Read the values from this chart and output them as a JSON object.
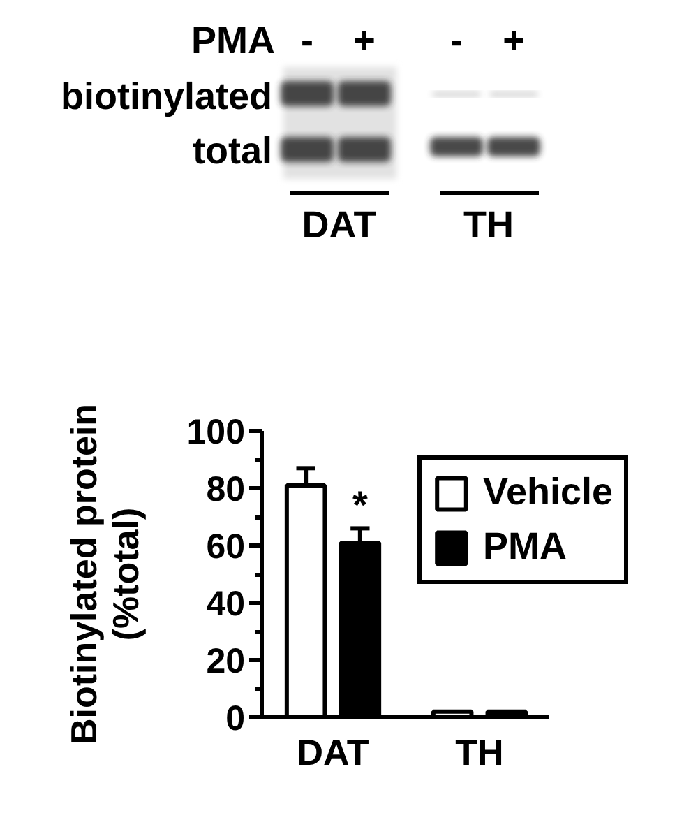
{
  "chart_data": [
    {
      "type": "other",
      "categories": [
        "-",
        "+",
        "-",
        "+"
      ],
      "y_categories": [
        "biotinylated",
        "total"
      ],
      "annotations": [
        "PMA",
        "DAT",
        "TH"
      ]
    },
    {
      "type": "bar",
      "categories": [
        "DAT",
        "TH"
      ],
      "ylabel": "Biotinylated protein (%total)",
      "series": [
        {
          "name": "Vehicle",
          "color": "#ffffff",
          "values": [
            81,
            2
          ],
          "errors": [
            6,
            null
          ]
        },
        {
          "name": "PMA",
          "color": "#000000",
          "values": [
            61,
            2
          ],
          "errors": [
            5,
            null
          ]
        }
      ],
      "ylim": [
        0,
        100
      ],
      "yticks": [
        0,
        {
          "value": 10,
          "label": null
        },
        20,
        {
          "value": 30,
          "label": null
        },
        40,
        {
          "value": 50,
          "label": null
        },
        60,
        {
          "value": 70,
          "label": null
        },
        80,
        {
          "value": 90,
          "label": null
        },
        100
      ],
      "annotations": [
        "*"
      ],
      "legend": "top right"
    }
  ]
}
